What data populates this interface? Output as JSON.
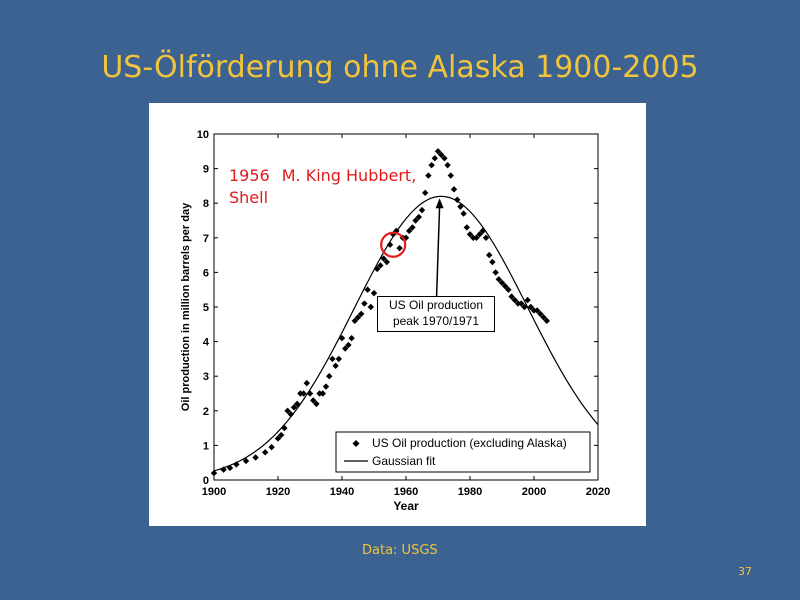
{
  "slide": {
    "title": "US-Ölförderung ohne Alaska 1900-2005",
    "source": "Data: USGS",
    "number": "37"
  },
  "colors": {
    "background": "#3b6291",
    "title": "#f2c43a",
    "annotation": "#e31b1b"
  },
  "chart_data": {
    "type": "scatter",
    "xlabel": "Year",
    "ylabel": "Oil production in million barrels per day",
    "xlim": [
      1900,
      2020
    ],
    "ylim": [
      0,
      10
    ],
    "xticks": [
      1900,
      1920,
      1940,
      1960,
      1980,
      2000,
      2020
    ],
    "yticks": [
      0,
      1,
      2,
      3,
      4,
      5,
      6,
      7,
      8,
      9,
      10
    ],
    "legend_position": "bottom-right",
    "series": [
      {
        "name": "US Oil production (excluding Alaska)",
        "marker": "diamond",
        "x": [
          1900,
          1903,
          1905,
          1907,
          1910,
          1913,
          1916,
          1918,
          1920,
          1921,
          1922,
          1923,
          1924,
          1925,
          1926,
          1927,
          1928,
          1929,
          1930,
          1931,
          1932,
          1933,
          1934,
          1935,
          1936,
          1937,
          1938,
          1939,
          1940,
          1941,
          1942,
          1943,
          1944,
          1945,
          1946,
          1947,
          1948,
          1949,
          1950,
          1951,
          1952,
          1953,
          1954,
          1955,
          1956,
          1957,
          1958,
          1959,
          1960,
          1961,
          1962,
          1963,
          1964,
          1965,
          1966,
          1967,
          1968,
          1969,
          1970,
          1971,
          1972,
          1973,
          1974,
          1975,
          1976,
          1977,
          1978,
          1979,
          1980,
          1981,
          1982,
          1983,
          1984,
          1985,
          1986,
          1987,
          1988,
          1989,
          1990,
          1991,
          1992,
          1993,
          1994,
          1995,
          1996,
          1997,
          1998,
          1999,
          2000,
          2001,
          2002,
          2003,
          2004
        ],
        "y": [
          0.2,
          0.3,
          0.35,
          0.45,
          0.55,
          0.65,
          0.8,
          0.95,
          1.2,
          1.3,
          1.5,
          2.0,
          1.9,
          2.1,
          2.2,
          2.5,
          2.5,
          2.8,
          2.5,
          2.3,
          2.2,
          2.5,
          2.5,
          2.7,
          3.0,
          3.5,
          3.3,
          3.5,
          4.1,
          3.8,
          3.9,
          4.1,
          4.6,
          4.7,
          4.8,
          5.1,
          5.5,
          5.0,
          5.4,
          6.1,
          6.2,
          6.4,
          6.3,
          6.8,
          7.1,
          7.2,
          6.7,
          7.0,
          7.0,
          7.2,
          7.3,
          7.5,
          7.6,
          7.8,
          8.3,
          8.8,
          9.1,
          9.3,
          9.5,
          9.4,
          9.3,
          9.1,
          8.8,
          8.4,
          8.1,
          7.9,
          7.7,
          7.3,
          7.1,
          7.0,
          7.0,
          7.1,
          7.2,
          7.0,
          6.5,
          6.3,
          6.0,
          5.8,
          5.7,
          5.6,
          5.5,
          5.3,
          5.2,
          5.1,
          5.1,
          5.0,
          5.2,
          5.0,
          4.9,
          4.9,
          4.8,
          4.7,
          4.6
        ]
      },
      {
        "name": "Gaussian fit",
        "type": "line",
        "peak_year": 1971,
        "peak_value": 8.2,
        "sigma_years": 27.1,
        "x": [
          1900,
          1905,
          1910,
          1915,
          1920,
          1925,
          1930,
          1935,
          1940,
          1945,
          1950,
          1955,
          1960,
          1965,
          1970,
          1975,
          1980,
          1985,
          1990,
          1995,
          2000,
          2005,
          2010,
          2015,
          2020
        ],
        "y": [
          0.26,
          0.43,
          0.65,
          1.0,
          1.5,
          2.2,
          2.7,
          3.3,
          4.0,
          5.0,
          6.0,
          6.8,
          7.5,
          8.0,
          8.2,
          8.1,
          7.8,
          7.2,
          6.4,
          5.5,
          4.6,
          3.6,
          2.7,
          2.0,
          1.4
        ]
      }
    ],
    "annotations": [
      {
        "id": "hubbert",
        "year": "1956",
        "text": "M. King Hubbert,\nShell",
        "x": 1956,
        "y": 6.8,
        "color": "#e31b1b"
      },
      {
        "id": "peak",
        "line1": "US Oil production",
        "line2": "peak 1970/1971",
        "x": 1970.5,
        "y": 8.2
      }
    ]
  }
}
